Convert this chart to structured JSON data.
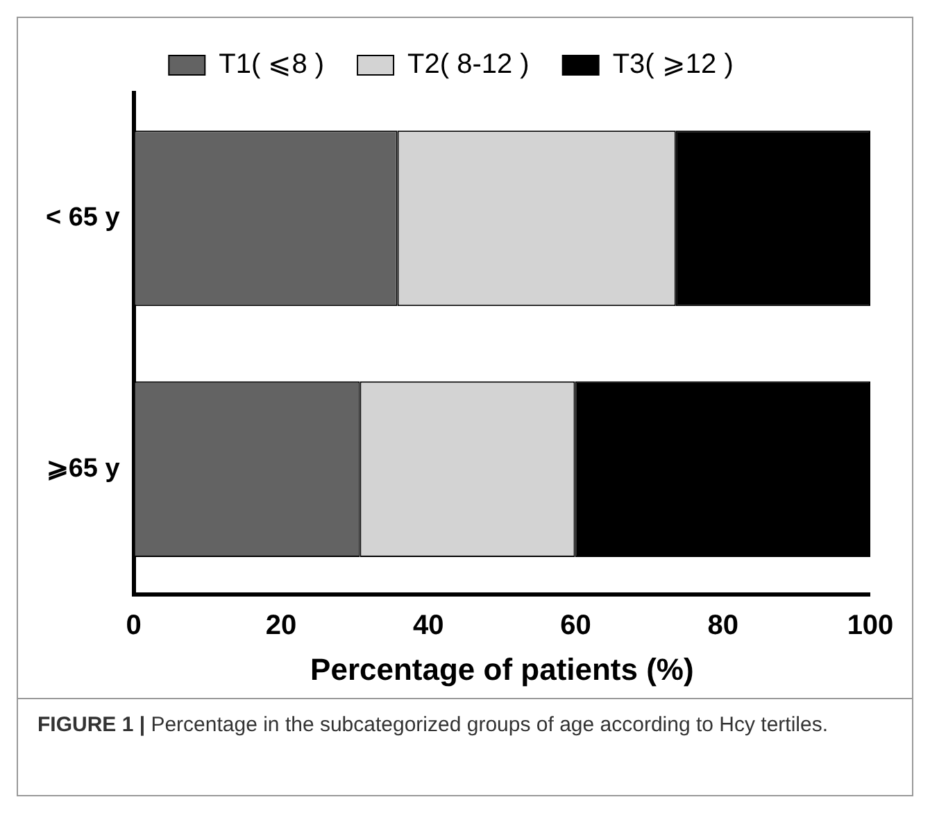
{
  "chart_data": {
    "type": "bar",
    "orientation": "horizontal",
    "stacked": true,
    "categories": [
      "< 65 y",
      "⩾65 y"
    ],
    "series": [
      {
        "name": "T1( ⩽8 )",
        "color": "#636363",
        "values": [
          35.8,
          30.7
        ]
      },
      {
        "name": "T2( 8-12 )",
        "color": "#d3d3d3",
        "values": [
          37.8,
          29.2
        ]
      },
      {
        "name": "T3( ⩾12 )",
        "color": "#000000",
        "values": [
          26.4,
          40.1
        ]
      }
    ],
    "xlabel": "Percentage of patients (%)",
    "xlim": [
      0,
      100
    ],
    "xticks": [
      0,
      20,
      40,
      60,
      80,
      100
    ],
    "grid": false,
    "legend": "top",
    "annotations": [
      "FIGURE 1 | Percentage in the subcategorized groups of age according to Hcy tertiles."
    ]
  }
}
